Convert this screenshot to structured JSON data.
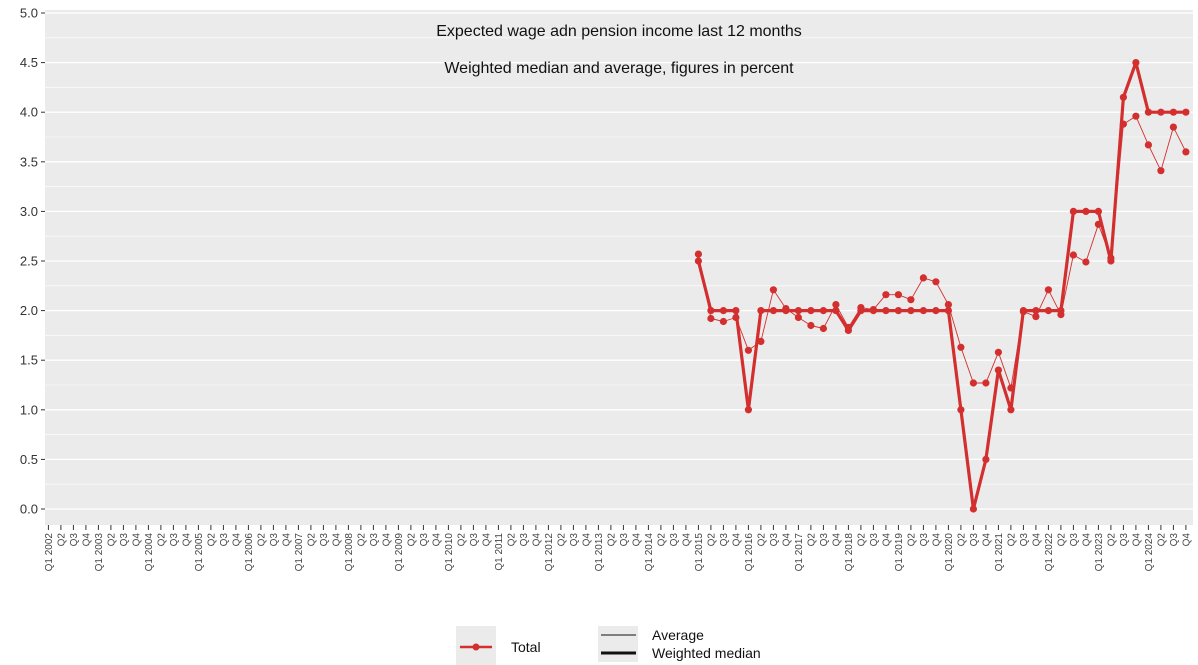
{
  "chart_data": {
    "type": "line",
    "title": "Expected wage adn pension income last 12 months",
    "subtitle": "Weighted median and average, figures in percent",
    "ylim": [
      0,
      5
    ],
    "yticks": [
      "0.0",
      "0.5",
      "1.0",
      "1.5",
      "2.0",
      "2.5",
      "3.0",
      "3.5",
      "4.0",
      "4.5",
      "5.0"
    ],
    "x_start_year": 2002,
    "x_end_year": 2024,
    "x_quarter_labels": [
      "Q1",
      "Q2",
      "Q3",
      "Q4"
    ],
    "grid": true,
    "legend_position": "bottom",
    "colors": {
      "series": "#d32f2f",
      "panel": "#ebebeb",
      "grid": "#ffffff"
    },
    "legend": {
      "group": "Total",
      "linetype_items": [
        "Average",
        "Weighted median"
      ]
    },
    "series": [
      {
        "name": "Weighted median",
        "style": "thick",
        "points": [
          [
            "2015 Q1",
            2.5
          ],
          [
            "2015 Q2",
            2.0
          ],
          [
            "2015 Q3",
            2.0
          ],
          [
            "2015 Q4",
            2.0
          ],
          [
            "2016 Q1",
            1.0
          ],
          [
            "2016 Q2",
            2.0
          ],
          [
            "2016 Q3",
            2.0
          ],
          [
            "2016 Q4",
            2.0
          ],
          [
            "2017 Q1",
            2.0
          ],
          [
            "2017 Q2",
            2.0
          ],
          [
            "2017 Q3",
            2.0
          ],
          [
            "2017 Q4",
            2.0
          ],
          [
            "2018 Q1",
            1.8
          ],
          [
            "2018 Q2",
            2.0
          ],
          [
            "2018 Q3",
            2.0
          ],
          [
            "2018 Q4",
            2.0
          ],
          [
            "2019 Q1",
            2.0
          ],
          [
            "2019 Q2",
            2.0
          ],
          [
            "2019 Q3",
            2.0
          ],
          [
            "2019 Q4",
            2.0
          ],
          [
            "2020 Q1",
            2.0
          ],
          [
            "2020 Q2",
            1.0
          ],
          [
            "2020 Q3",
            0.0
          ],
          [
            "2020 Q4",
            0.5
          ],
          [
            "2021 Q1",
            1.4
          ],
          [
            "2021 Q2",
            1.0
          ],
          [
            "2021 Q3",
            2.0
          ],
          [
            "2021 Q4",
            2.0
          ],
          [
            "2022 Q1",
            2.0
          ],
          [
            "2022 Q2",
            2.0
          ],
          [
            "2022 Q3",
            3.0
          ],
          [
            "2022 Q4",
            3.0
          ],
          [
            "2023 Q1",
            3.0
          ],
          [
            "2023 Q2",
            2.5
          ],
          [
            "2023 Q3",
            4.15
          ],
          [
            "2023 Q4",
            4.5
          ],
          [
            "2024 Q1",
            4.0
          ],
          [
            "2024 Q2",
            4.0
          ],
          [
            "2024 Q3",
            4.0
          ],
          [
            "2024 Q4",
            4.0
          ]
        ]
      },
      {
        "name": "Average",
        "style": "thin",
        "points": [
          [
            "2015 Q1",
            2.57
          ],
          [
            "2015 Q2",
            1.92
          ],
          [
            "2015 Q3",
            1.89
          ],
          [
            "2015 Q4",
            1.93
          ],
          [
            "2016 Q1",
            1.6
          ],
          [
            "2016 Q2",
            1.69
          ],
          [
            "2016 Q3",
            2.21
          ],
          [
            "2016 Q4",
            2.02
          ],
          [
            "2017 Q1",
            1.93
          ],
          [
            "2017 Q2",
            1.85
          ],
          [
            "2017 Q3",
            1.82
          ],
          [
            "2017 Q4",
            2.06
          ],
          [
            "2018 Q1",
            1.83
          ],
          [
            "2018 Q2",
            2.03
          ],
          [
            "2018 Q3",
            2.01
          ],
          [
            "2018 Q4",
            2.16
          ],
          [
            "2019 Q1",
            2.16
          ],
          [
            "2019 Q2",
            2.11
          ],
          [
            "2019 Q3",
            2.33
          ],
          [
            "2019 Q4",
            2.29
          ],
          [
            "2020 Q1",
            2.06
          ],
          [
            "2020 Q2",
            1.63
          ],
          [
            "2020 Q3",
            1.27
          ],
          [
            "2020 Q4",
            1.27
          ],
          [
            "2021 Q1",
            1.58
          ],
          [
            "2021 Q2",
            1.22
          ],
          [
            "2021 Q3",
            1.99
          ],
          [
            "2021 Q4",
            1.94
          ],
          [
            "2022 Q1",
            2.21
          ],
          [
            "2022 Q2",
            1.96
          ],
          [
            "2022 Q3",
            2.56
          ],
          [
            "2022 Q4",
            2.49
          ],
          [
            "2023 Q1",
            2.87
          ],
          [
            "2023 Q2",
            2.53
          ],
          [
            "2023 Q3",
            3.88
          ],
          [
            "2023 Q4",
            3.96
          ],
          [
            "2024 Q1",
            3.67
          ],
          [
            "2024 Q2",
            3.41
          ],
          [
            "2024 Q3",
            3.85
          ],
          [
            "2024 Q4",
            3.6
          ]
        ]
      }
    ]
  }
}
